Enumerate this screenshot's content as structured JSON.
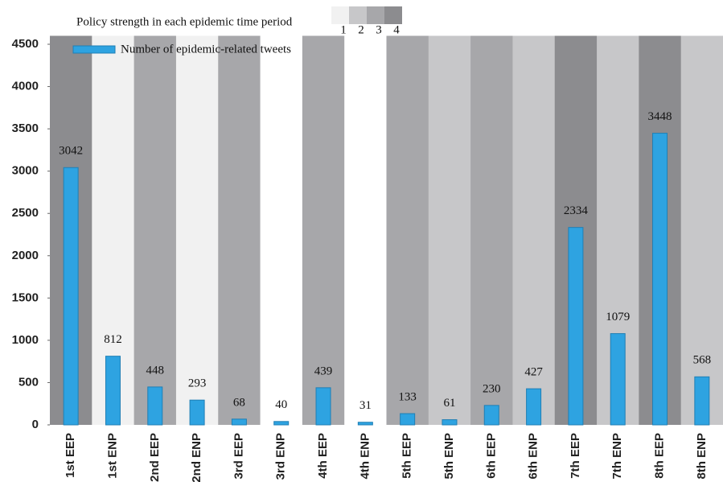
{
  "chart_data": {
    "type": "bar",
    "categories": [
      "1st EEP",
      "1st ENP",
      "2nd EEP",
      "2nd ENP",
      "3rd EEP",
      "3rd ENP",
      "4th EEP",
      "4th ENP",
      "5th EEP",
      "5th ENP",
      "6th EEP",
      "6th ENP",
      "7th EEP",
      "7th ENP",
      "8th EEP",
      "8th ENP"
    ],
    "series": [
      {
        "name": "Number of epidemic-related tweets",
        "color": "#2ea3e1",
        "values": [
          3042,
          812,
          448,
          293,
          68,
          40,
          439,
          31,
          133,
          61,
          230,
          427,
          2334,
          1079,
          3448,
          568
        ]
      }
    ],
    "policy_strength": [
      4,
      1,
      3,
      1,
      3,
      0,
      3,
      0,
      3,
      2,
      3,
      2,
      4,
      2,
      4,
      2
    ],
    "policy_colors": [
      "#ffffff",
      "#f1f1f1",
      "#c7c7c9",
      "#a7a7aa",
      "#8c8c8f"
    ],
    "policy_legend": {
      "title": "Policy strength in each epidemic time period",
      "levels": [
        1,
        2,
        3,
        4
      ]
    },
    "ylim": [
      0,
      4600
    ],
    "yticks": [
      0,
      500,
      1000,
      1500,
      2000,
      2500,
      3000,
      3500,
      4000,
      4500
    ]
  }
}
